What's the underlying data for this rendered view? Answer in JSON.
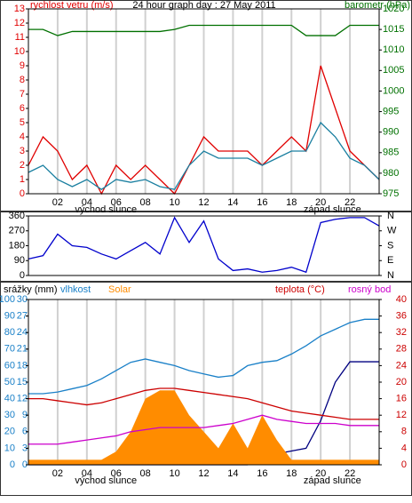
{
  "charts": [
    {
      "type": "line",
      "title": "24 hour graph day : 27 May 2011",
      "ylabel": "rychlost vetru (m/s)",
      "y2label": "barometr (hPa)",
      "x": [
        0,
        1,
        2,
        3,
        4,
        5,
        6,
        7,
        8,
        9,
        10,
        11,
        12,
        13,
        14,
        15,
        16,
        17,
        18,
        19,
        20,
        21,
        22,
        23,
        24
      ],
      "xlim": [
        0,
        24
      ],
      "xticks": [
        {
          "value": 2,
          "label": "02"
        },
        {
          "value": 4,
          "label": "04"
        },
        {
          "value": 6,
          "label": "06"
        },
        {
          "value": 8,
          "label": "08"
        },
        10,
        12,
        14,
        16,
        18,
        20,
        22
      ],
      "annotations": [
        "východ slunce",
        "západ slunce"
      ],
      "ylim": [
        0,
        13
      ],
      "yticks": [
        0,
        1,
        2,
        3,
        4,
        5,
        6,
        7,
        8,
        9,
        10,
        11,
        12,
        13
      ],
      "y2lim": [
        975,
        1020
      ],
      "y2ticks": [
        975,
        980,
        985,
        990,
        995,
        1000,
        1005,
        1010,
        1015,
        1020
      ],
      "grid": true,
      "series": [
        {
          "name": "rychlost vetru (m/s)",
          "color": "#e00000",
          "values": [
            2,
            4,
            3,
            1,
            2,
            0,
            2,
            1,
            2,
            1,
            0,
            2,
            4,
            3,
            3,
            3,
            2,
            3,
            4,
            3,
            9,
            6,
            3,
            2,
            1
          ]
        },
        {
          "color": "#1a7fa0",
          "values": [
            1.5,
            2,
            1,
            0.5,
            1,
            0.3,
            1,
            0.8,
            1,
            0.5,
            0.3,
            2,
            3,
            2.5,
            2.5,
            2.5,
            2,
            2.5,
            3,
            3,
            5,
            4,
            2.5,
            2,
            1
          ]
        },
        {
          "name": "barometr (hPa)",
          "color": "#007000",
          "axis": "y2",
          "values": [
            1015,
            1015,
            1013.5,
            1014.5,
            1014.5,
            1014.5,
            1014.5,
            1014.5,
            1014.5,
            1014.5,
            1015,
            1016,
            1016,
            1016,
            1016,
            1016,
            1016,
            1016,
            1016,
            1013.5,
            1013.5,
            1013.5,
            1016,
            1016,
            1016
          ]
        }
      ]
    },
    {
      "type": "line",
      "x": [
        0,
        1,
        2,
        3,
        4,
        5,
        6,
        7,
        8,
        9,
        10,
        11,
        12,
        13,
        14,
        15,
        16,
        17,
        18,
        19,
        20,
        21,
        22,
        23,
        24
      ],
      "xlim": [
        0,
        24
      ],
      "ylim": [
        0,
        360
      ],
      "yticks": [
        0,
        90,
        180,
        270,
        360
      ],
      "y2lim": [
        0,
        360
      ],
      "y2ticks": [
        {
          "value": 360,
          "label": "N"
        },
        {
          "value": 270,
          "label": "W"
        },
        {
          "value": 180,
          "label": "S"
        },
        {
          "value": 90,
          "label": "E"
        },
        {
          "value": 0,
          "label": "N"
        }
      ],
      "series": [
        {
          "color": "#0000cc",
          "values": [
            100,
            120,
            250,
            180,
            170,
            130,
            100,
            150,
            200,
            130,
            350,
            200,
            330,
            100,
            30,
            40,
            20,
            30,
            50,
            20,
            320,
            340,
            350,
            350,
            300
          ]
        }
      ]
    },
    {
      "type": "line",
      "x": [
        0,
        1,
        2,
        3,
        4,
        5,
        6,
        7,
        8,
        9,
        10,
        11,
        12,
        13,
        14,
        15,
        16,
        17,
        18,
        19,
        20,
        21,
        22,
        23,
        24
      ],
      "xlim": [
        0,
        24
      ],
      "xticks": [
        {
          "value": 2,
          "label": "02"
        },
        {
          "value": 4,
          "label": "04"
        },
        {
          "value": 6,
          "label": "06"
        },
        {
          "value": 8,
          "label": "08"
        },
        10,
        12,
        14,
        16,
        18,
        20,
        22
      ],
      "annotations": [
        "východ slunce",
        "západ slunce"
      ],
      "ylim": [
        0,
        100
      ],
      "yticks": [
        0,
        10,
        20,
        30,
        40,
        50,
        60,
        70,
        80,
        90,
        100
      ],
      "y3lim": [
        0,
        30
      ],
      "y3ticks": [
        0,
        3,
        6,
        9,
        12,
        15,
        18,
        21,
        24,
        27,
        30
      ],
      "y2lim": [
        0,
        40
      ],
      "y2ticks": [
        0,
        4,
        8,
        12,
        16,
        20,
        24,
        28,
        32,
        36,
        40
      ],
      "grid": true,
      "series": [
        {
          "name": "srážky (mm)",
          "color": "#000080",
          "axis": "y3",
          "values": [
            0,
            0,
            0,
            0,
            0,
            0,
            0,
            0,
            0,
            0,
            0,
            0,
            0,
            0,
            0,
            0,
            1.5,
            2,
            2.5,
            3,
            8,
            15,
            18.7,
            18.7,
            18.7
          ]
        },
        {
          "name": "vlhkost",
          "color": "#1a80c8",
          "values": [
            43,
            43,
            44,
            46,
            48,
            52,
            57,
            62,
            64,
            62,
            60,
            57,
            55,
            53,
            54,
            60,
            62,
            63,
            67,
            72,
            78,
            82,
            86,
            88,
            88
          ]
        },
        {
          "name": "Solar",
          "color": "#ff8c00",
          "area": true,
          "values": [
            3,
            3,
            3,
            3,
            3,
            3,
            8,
            20,
            40,
            45,
            45,
            30,
            20,
            10,
            25,
            10,
            30,
            15,
            3,
            3,
            3,
            3,
            3,
            3,
            3
          ]
        },
        {
          "name": "teplota (°C)",
          "color": "#cc0000",
          "axis": "y2",
          "values": [
            16,
            16,
            15.5,
            15,
            14.5,
            15,
            16,
            17,
            18,
            18.5,
            18.5,
            18,
            17.5,
            17,
            16.5,
            16,
            15,
            14,
            13,
            12.5,
            12,
            11.5,
            11,
            11,
            11
          ]
        },
        {
          "name": "rosný bod",
          "color": "#cc00cc",
          "axis": "y2",
          "values": [
            5,
            5,
            5,
            5.5,
            6,
            6.5,
            7,
            8,
            8.5,
            9,
            9,
            9,
            9,
            9.5,
            10,
            11,
            12,
            11,
            10.5,
            10,
            10,
            10,
            9.5,
            9.5,
            9.5
          ]
        }
      ]
    }
  ]
}
